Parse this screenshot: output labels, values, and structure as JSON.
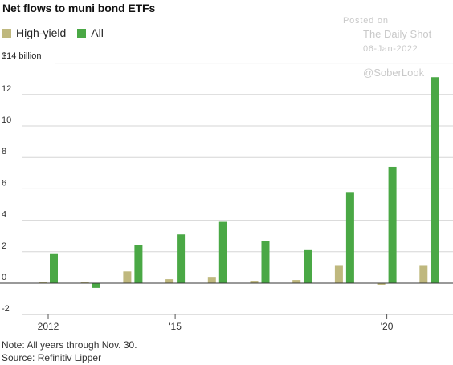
{
  "title": "Net flows to muni bond ETFs",
  "legend": [
    {
      "label": "High-yield",
      "color": "#bfb87e"
    },
    {
      "label": "All",
      "color": "#4aa845"
    }
  ],
  "unit_label": "$14 billion",
  "watermark": {
    "posted": "Posted on",
    "source": "The Daily Shot",
    "date": "06-Jan-2022",
    "handle": "@SoberLook"
  },
  "notes": {
    "note": "Note: All years through Nov. 30.",
    "source": "Source: Refinitiv Lipper"
  },
  "chart_data": {
    "type": "bar",
    "categories": [
      "2012",
      "2013",
      "2014",
      "2015",
      "2016",
      "2017",
      "2018",
      "2019",
      "2020",
      "2021"
    ],
    "x_tick_labels": [
      {
        "category": "2012",
        "label": "2012"
      },
      {
        "category": "2015",
        "label": "'15"
      },
      {
        "category": "2020",
        "label": "'20"
      }
    ],
    "series": [
      {
        "name": "High-yield",
        "color": "#bfb87e",
        "values": [
          0.1,
          0.05,
          0.75,
          0.25,
          0.4,
          0.15,
          0.2,
          1.15,
          -0.1,
          1.15
        ]
      },
      {
        "name": "All",
        "color": "#4aa845",
        "values": [
          1.85,
          -0.3,
          2.4,
          3.1,
          3.9,
          2.7,
          2.1,
          5.8,
          7.4,
          13.1
        ]
      }
    ],
    "y_ticks": [
      -2,
      0,
      2,
      4,
      6,
      8,
      10,
      12
    ],
    "y_tick_labels": [
      "-2",
      "0",
      "2",
      "4",
      "6",
      "8",
      "10",
      "12"
    ],
    "ylim": [
      -2,
      14
    ],
    "grid": true
  }
}
